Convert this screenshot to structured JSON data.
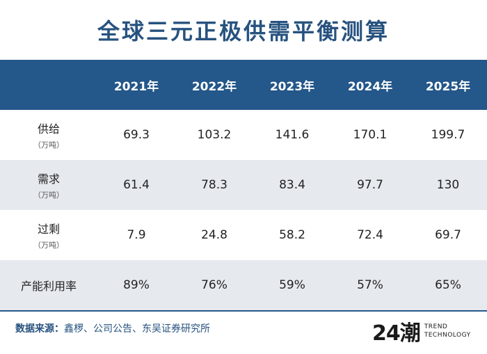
{
  "title": "全球三元正极供需平衡测算",
  "table": {
    "header": [
      "",
      "2021年",
      "2022年",
      "2023年",
      "2024年",
      "2025年"
    ],
    "rows": [
      {
        "label": "供给",
        "unit": "（万吨）",
        "values": [
          "69.3",
          "103.2",
          "141.6",
          "170.1",
          "199.7"
        ]
      },
      {
        "label": "需求",
        "unit": "（万吨）",
        "values": [
          "61.4",
          "78.3",
          "83.4",
          "97.7",
          "130"
        ]
      },
      {
        "label": "过剩",
        "unit": "（万吨）",
        "values": [
          "7.9",
          "24.8",
          "58.2",
          "72.4",
          "69.7"
        ]
      },
      {
        "label": "产能利用率",
        "unit": "",
        "values": [
          "89%",
          "76%",
          "59%",
          "57%",
          "65%"
        ]
      }
    ]
  },
  "footer": {
    "source_label": "数据来源：",
    "source_text": "鑫椤、公司公告、东吴证券研究所",
    "logo_mark": "24潮",
    "logo_line1": "TREND",
    "logo_line2": "TECHNOLOGY"
  },
  "colors": {
    "title": "#27527f",
    "header_bg": "#24578a",
    "stripe": "#e6eaef"
  }
}
